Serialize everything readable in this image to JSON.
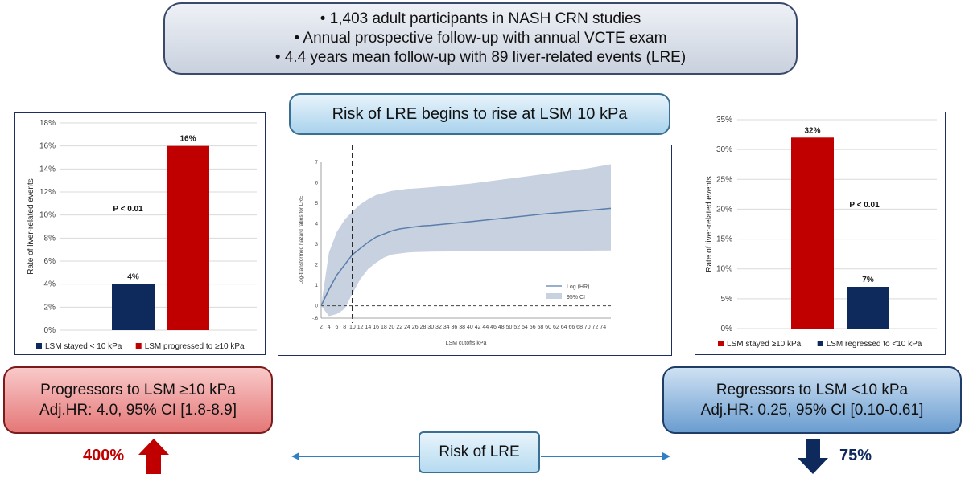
{
  "summary": {
    "line1": "• 1,403 adult participants in NASH CRN studies",
    "line2": "• Annual prospective follow-up with annual VCTE exam",
    "line3": "• 4.4 years mean follow-up with 89 liver-related events (LRE)"
  },
  "rise_box": "Risk of LRE begins to rise at LSM 10 kPa",
  "progressors": {
    "title": "Progressors to LSM ≥10 kPa",
    "hr": "Adj.HR: 4.0, 95% CI [1.8-8.9]",
    "pct": "400%"
  },
  "regressors": {
    "title": "Regressors to LSM <10 kPa",
    "hr": "Adj.HR: 0.25, 95% CI [0.10-0.61]",
    "pct": "75%"
  },
  "lre_label": "Risk of LRE",
  "colors": {
    "red": "#c00000",
    "navy": "#0e2a5c",
    "band": "#c7d1df",
    "line": "#5b7dab"
  },
  "chart_data": [
    {
      "type": "bar",
      "ylabel": "Rate of liver-related events",
      "ylim": [
        0,
        18
      ],
      "yticks": [
        "0%",
        "2%",
        "4%",
        "6%",
        "8%",
        "10%",
        "12%",
        "14%",
        "16%",
        "18%"
      ],
      "categories": [
        "LSM stayed < 10 kPa",
        "LSM progressed to ≥10 kPa"
      ],
      "values": [
        4,
        16
      ],
      "labels": [
        "4%",
        "16%"
      ],
      "colors": [
        "#0e2a5c",
        "#c00000"
      ],
      "annotation": "P < 0.01",
      "grid": true
    },
    {
      "type": "area",
      "xlabel": "LSM cutoffs kPa",
      "ylabel": "Log-transformed hazard ratios for LRE",
      "xticks": [
        "2",
        "4",
        "6",
        "8",
        "10",
        "12",
        "14",
        "16",
        "18",
        "20",
        "22",
        "24",
        "26",
        "28",
        "30",
        "32",
        "34",
        "36",
        "38",
        "40",
        "42",
        "44",
        "46",
        "48",
        "50",
        "52",
        "54",
        "56",
        "58",
        "60",
        "62",
        "64",
        "66",
        "68",
        "70",
        "72",
        "74"
      ],
      "yticks": [
        "-.6",
        "0",
        "1",
        "2",
        "3",
        "4",
        "5",
        "6",
        "7"
      ],
      "xlim": [
        2,
        76
      ],
      "ylim": [
        -0.6,
        7
      ],
      "x": [
        2,
        4,
        6,
        8,
        10,
        12,
        14,
        16,
        18,
        20,
        22,
        24,
        26,
        28,
        30,
        40,
        50,
        60,
        70,
        76
      ],
      "y": [
        0,
        0.8,
        1.5,
        2.0,
        2.5,
        2.8,
        3.1,
        3.35,
        3.5,
        3.65,
        3.75,
        3.8,
        3.85,
        3.9,
        3.92,
        4.1,
        4.3,
        4.5,
        4.65,
        4.75
      ],
      "lower": [
        0,
        -0.5,
        -0.4,
        -0.15,
        0.6,
        1.3,
        1.8,
        2.1,
        2.35,
        2.5,
        2.55,
        2.6,
        2.62,
        2.63,
        2.64,
        2.66,
        2.67,
        2.68,
        2.69,
        2.7
      ],
      "upper": [
        0,
        2.6,
        3.6,
        4.2,
        4.6,
        4.95,
        5.2,
        5.4,
        5.5,
        5.6,
        5.65,
        5.7,
        5.72,
        5.75,
        5.78,
        5.95,
        6.2,
        6.45,
        6.7,
        6.9
      ],
      "cutoff": 10,
      "series": [
        {
          "name": "Log (HR)"
        },
        {
          "name": "95% CI"
        }
      ]
    },
    {
      "type": "bar",
      "ylabel": "Rate of liver-related events",
      "ylim": [
        0,
        35
      ],
      "yticks": [
        "0%",
        "5%",
        "10%",
        "15%",
        "20%",
        "25%",
        "30%",
        "35%"
      ],
      "categories": [
        "LSM stayed  ≥10 kPa",
        "LSM regressed to <10 kPa"
      ],
      "values": [
        32,
        7
      ],
      "labels": [
        "32%",
        "7%"
      ],
      "colors": [
        "#c00000",
        "#0e2a5c"
      ],
      "annotation": "P < 0.01",
      "grid": true
    }
  ]
}
